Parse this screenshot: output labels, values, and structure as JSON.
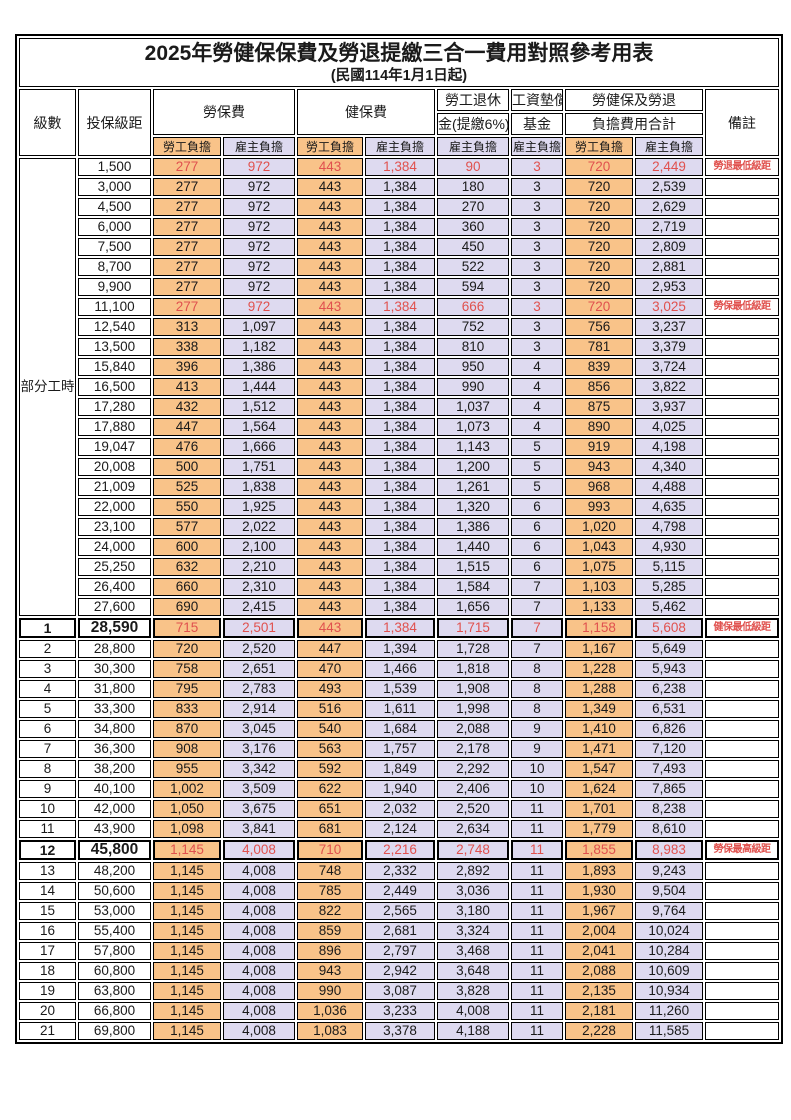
{
  "title": "2025年勞健保保費及勞退提繳三合一費用對照參考用表",
  "subtitle": "(民國114年1月1日起)",
  "colors": {
    "employee_bg": "#f9c389",
    "employer_bg": "#dedaf0",
    "red_text": "#e0514e",
    "border": "#000000"
  },
  "header": {
    "level": "級數",
    "bracket": "投保級距",
    "labor_group": "勞保費",
    "health_group": "健保費",
    "pension_line1": "勞工退休",
    "pension_line2": "金(提繳6%)",
    "wage_fund_line1": "工資墊償",
    "wage_fund_line2": "基金",
    "total_line1": "勞健保及勞退",
    "total_line2": "負擔費用合計",
    "remark": "備註",
    "employee": "勞工負擔",
    "employer": "雇主負擔"
  },
  "part_time_label": "部分工時",
  "part_time_rows": 23,
  "rows": [
    {
      "level": "",
      "bracket": "1,500",
      "c": [
        "277",
        "972",
        "443",
        "1,384",
        "90",
        "3",
        "720",
        "2,449"
      ],
      "remark": "勞退最低級距",
      "red": true,
      "em": false
    },
    {
      "level": "",
      "bracket": "3,000",
      "c": [
        "277",
        "972",
        "443",
        "1,384",
        "180",
        "3",
        "720",
        "2,539"
      ],
      "remark": "",
      "red": false,
      "em": false
    },
    {
      "level": "",
      "bracket": "4,500",
      "c": [
        "277",
        "972",
        "443",
        "1,384",
        "270",
        "3",
        "720",
        "2,629"
      ],
      "remark": "",
      "red": false,
      "em": false
    },
    {
      "level": "",
      "bracket": "6,000",
      "c": [
        "277",
        "972",
        "443",
        "1,384",
        "360",
        "3",
        "720",
        "2,719"
      ],
      "remark": "",
      "red": false,
      "em": false
    },
    {
      "level": "",
      "bracket": "7,500",
      "c": [
        "277",
        "972",
        "443",
        "1,384",
        "450",
        "3",
        "720",
        "2,809"
      ],
      "remark": "",
      "red": false,
      "em": false
    },
    {
      "level": "",
      "bracket": "8,700",
      "c": [
        "277",
        "972",
        "443",
        "1,384",
        "522",
        "3",
        "720",
        "2,881"
      ],
      "remark": "",
      "red": false,
      "em": false
    },
    {
      "level": "",
      "bracket": "9,900",
      "c": [
        "277",
        "972",
        "443",
        "1,384",
        "594",
        "3",
        "720",
        "2,953"
      ],
      "remark": "",
      "red": false,
      "em": false
    },
    {
      "level": "",
      "bracket": "11,100",
      "c": [
        "277",
        "972",
        "443",
        "1,384",
        "666",
        "3",
        "720",
        "3,025"
      ],
      "remark": "勞保最低級距",
      "red": true,
      "em": false
    },
    {
      "level": "",
      "bracket": "12,540",
      "c": [
        "313",
        "1,097",
        "443",
        "1,384",
        "752",
        "3",
        "756",
        "3,237"
      ],
      "remark": "",
      "red": false,
      "em": false
    },
    {
      "level": "",
      "bracket": "13,500",
      "c": [
        "338",
        "1,182",
        "443",
        "1,384",
        "810",
        "3",
        "781",
        "3,379"
      ],
      "remark": "",
      "red": false,
      "em": false
    },
    {
      "level": "",
      "bracket": "15,840",
      "c": [
        "396",
        "1,386",
        "443",
        "1,384",
        "950",
        "4",
        "839",
        "3,724"
      ],
      "remark": "",
      "red": false,
      "em": false
    },
    {
      "level": "",
      "bracket": "16,500",
      "c": [
        "413",
        "1,444",
        "443",
        "1,384",
        "990",
        "4",
        "856",
        "3,822"
      ],
      "remark": "",
      "red": false,
      "em": false
    },
    {
      "level": "",
      "bracket": "17,280",
      "c": [
        "432",
        "1,512",
        "443",
        "1,384",
        "1,037",
        "4",
        "875",
        "3,937"
      ],
      "remark": "",
      "red": false,
      "em": false
    },
    {
      "level": "",
      "bracket": "17,880",
      "c": [
        "447",
        "1,564",
        "443",
        "1,384",
        "1,073",
        "4",
        "890",
        "4,025"
      ],
      "remark": "",
      "red": false,
      "em": false
    },
    {
      "level": "",
      "bracket": "19,047",
      "c": [
        "476",
        "1,666",
        "443",
        "1,384",
        "1,143",
        "5",
        "919",
        "4,198"
      ],
      "remark": "",
      "red": false,
      "em": false
    },
    {
      "level": "",
      "bracket": "20,008",
      "c": [
        "500",
        "1,751",
        "443",
        "1,384",
        "1,200",
        "5",
        "943",
        "4,340"
      ],
      "remark": "",
      "red": false,
      "em": false
    },
    {
      "level": "",
      "bracket": "21,009",
      "c": [
        "525",
        "1,838",
        "443",
        "1,384",
        "1,261",
        "5",
        "968",
        "4,488"
      ],
      "remark": "",
      "red": false,
      "em": false
    },
    {
      "level": "",
      "bracket": "22,000",
      "c": [
        "550",
        "1,925",
        "443",
        "1,384",
        "1,320",
        "6",
        "993",
        "4,635"
      ],
      "remark": "",
      "red": false,
      "em": false
    },
    {
      "level": "",
      "bracket": "23,100",
      "c": [
        "577",
        "2,022",
        "443",
        "1,384",
        "1,386",
        "6",
        "1,020",
        "4,798"
      ],
      "remark": "",
      "red": false,
      "em": false
    },
    {
      "level": "",
      "bracket": "24,000",
      "c": [
        "600",
        "2,100",
        "443",
        "1,384",
        "1,440",
        "6",
        "1,043",
        "4,930"
      ],
      "remark": "",
      "red": false,
      "em": false
    },
    {
      "level": "",
      "bracket": "25,250",
      "c": [
        "632",
        "2,210",
        "443",
        "1,384",
        "1,515",
        "6",
        "1,075",
        "5,115"
      ],
      "remark": "",
      "red": false,
      "em": false
    },
    {
      "level": "",
      "bracket": "26,400",
      "c": [
        "660",
        "2,310",
        "443",
        "1,384",
        "1,584",
        "7",
        "1,103",
        "5,285"
      ],
      "remark": "",
      "red": false,
      "em": false
    },
    {
      "level": "",
      "bracket": "27,600",
      "c": [
        "690",
        "2,415",
        "443",
        "1,384",
        "1,656",
        "7",
        "1,133",
        "5,462"
      ],
      "remark": "",
      "red": false,
      "em": false
    },
    {
      "level": "1",
      "bracket": "28,590",
      "c": [
        "715",
        "2,501",
        "443",
        "1,384",
        "1,715",
        "7",
        "1,158",
        "5,608"
      ],
      "remark": "健保最低級距",
      "red": true,
      "em": true
    },
    {
      "level": "2",
      "bracket": "28,800",
      "c": [
        "720",
        "2,520",
        "447",
        "1,394",
        "1,728",
        "7",
        "1,167",
        "5,649"
      ],
      "remark": "",
      "red": false,
      "em": false
    },
    {
      "level": "3",
      "bracket": "30,300",
      "c": [
        "758",
        "2,651",
        "470",
        "1,466",
        "1,818",
        "8",
        "1,228",
        "5,943"
      ],
      "remark": "",
      "red": false,
      "em": false
    },
    {
      "level": "4",
      "bracket": "31,800",
      "c": [
        "795",
        "2,783",
        "493",
        "1,539",
        "1,908",
        "8",
        "1,288",
        "6,238"
      ],
      "remark": "",
      "red": false,
      "em": false
    },
    {
      "level": "5",
      "bracket": "33,300",
      "c": [
        "833",
        "2,914",
        "516",
        "1,611",
        "1,998",
        "8",
        "1,349",
        "6,531"
      ],
      "remark": "",
      "red": false,
      "em": false
    },
    {
      "level": "6",
      "bracket": "34,800",
      "c": [
        "870",
        "3,045",
        "540",
        "1,684",
        "2,088",
        "9",
        "1,410",
        "6,826"
      ],
      "remark": "",
      "red": false,
      "em": false
    },
    {
      "level": "7",
      "bracket": "36,300",
      "c": [
        "908",
        "3,176",
        "563",
        "1,757",
        "2,178",
        "9",
        "1,471",
        "7,120"
      ],
      "remark": "",
      "red": false,
      "em": false
    },
    {
      "level": "8",
      "bracket": "38,200",
      "c": [
        "955",
        "3,342",
        "592",
        "1,849",
        "2,292",
        "10",
        "1,547",
        "7,493"
      ],
      "remark": "",
      "red": false,
      "em": false
    },
    {
      "level": "9",
      "bracket": "40,100",
      "c": [
        "1,002",
        "3,509",
        "622",
        "1,940",
        "2,406",
        "10",
        "1,624",
        "7,865"
      ],
      "remark": "",
      "red": false,
      "em": false
    },
    {
      "level": "10",
      "bracket": "42,000",
      "c": [
        "1,050",
        "3,675",
        "651",
        "2,032",
        "2,520",
        "11",
        "1,701",
        "8,238"
      ],
      "remark": "",
      "red": false,
      "em": false
    },
    {
      "level": "11",
      "bracket": "43,900",
      "c": [
        "1,098",
        "3,841",
        "681",
        "2,124",
        "2,634",
        "11",
        "1,779",
        "8,610"
      ],
      "remark": "",
      "red": false,
      "em": false
    },
    {
      "level": "12",
      "bracket": "45,800",
      "c": [
        "1,145",
        "4,008",
        "710",
        "2,216",
        "2,748",
        "11",
        "1,855",
        "8,983"
      ],
      "remark": "勞保最高級距",
      "red": true,
      "em": true
    },
    {
      "level": "13",
      "bracket": "48,200",
      "c": [
        "1,145",
        "4,008",
        "748",
        "2,332",
        "2,892",
        "11",
        "1,893",
        "9,243"
      ],
      "remark": "",
      "red": false,
      "em": false
    },
    {
      "level": "14",
      "bracket": "50,600",
      "c": [
        "1,145",
        "4,008",
        "785",
        "2,449",
        "3,036",
        "11",
        "1,930",
        "9,504"
      ],
      "remark": "",
      "red": false,
      "em": false
    },
    {
      "level": "15",
      "bracket": "53,000",
      "c": [
        "1,145",
        "4,008",
        "822",
        "2,565",
        "3,180",
        "11",
        "1,967",
        "9,764"
      ],
      "remark": "",
      "red": false,
      "em": false
    },
    {
      "level": "16",
      "bracket": "55,400",
      "c": [
        "1,145",
        "4,008",
        "859",
        "2,681",
        "3,324",
        "11",
        "2,004",
        "10,024"
      ],
      "remark": "",
      "red": false,
      "em": false
    },
    {
      "level": "17",
      "bracket": "57,800",
      "c": [
        "1,145",
        "4,008",
        "896",
        "2,797",
        "3,468",
        "11",
        "2,041",
        "10,284"
      ],
      "remark": "",
      "red": false,
      "em": false
    },
    {
      "level": "18",
      "bracket": "60,800",
      "c": [
        "1,145",
        "4,008",
        "943",
        "2,942",
        "3,648",
        "11",
        "2,088",
        "10,609"
      ],
      "remark": "",
      "red": false,
      "em": false
    },
    {
      "level": "19",
      "bracket": "63,800",
      "c": [
        "1,145",
        "4,008",
        "990",
        "3,087",
        "3,828",
        "11",
        "2,135",
        "10,934"
      ],
      "remark": "",
      "red": false,
      "em": false
    },
    {
      "level": "20",
      "bracket": "66,800",
      "c": [
        "1,145",
        "4,008",
        "1,036",
        "3,233",
        "4,008",
        "11",
        "2,181",
        "11,260"
      ],
      "remark": "",
      "red": false,
      "em": false
    },
    {
      "level": "21",
      "bracket": "69,800",
      "c": [
        "1,145",
        "4,008",
        "1,083",
        "3,378",
        "4,188",
        "11",
        "2,228",
        "11,585"
      ],
      "remark": "",
      "red": false,
      "em": false
    }
  ]
}
